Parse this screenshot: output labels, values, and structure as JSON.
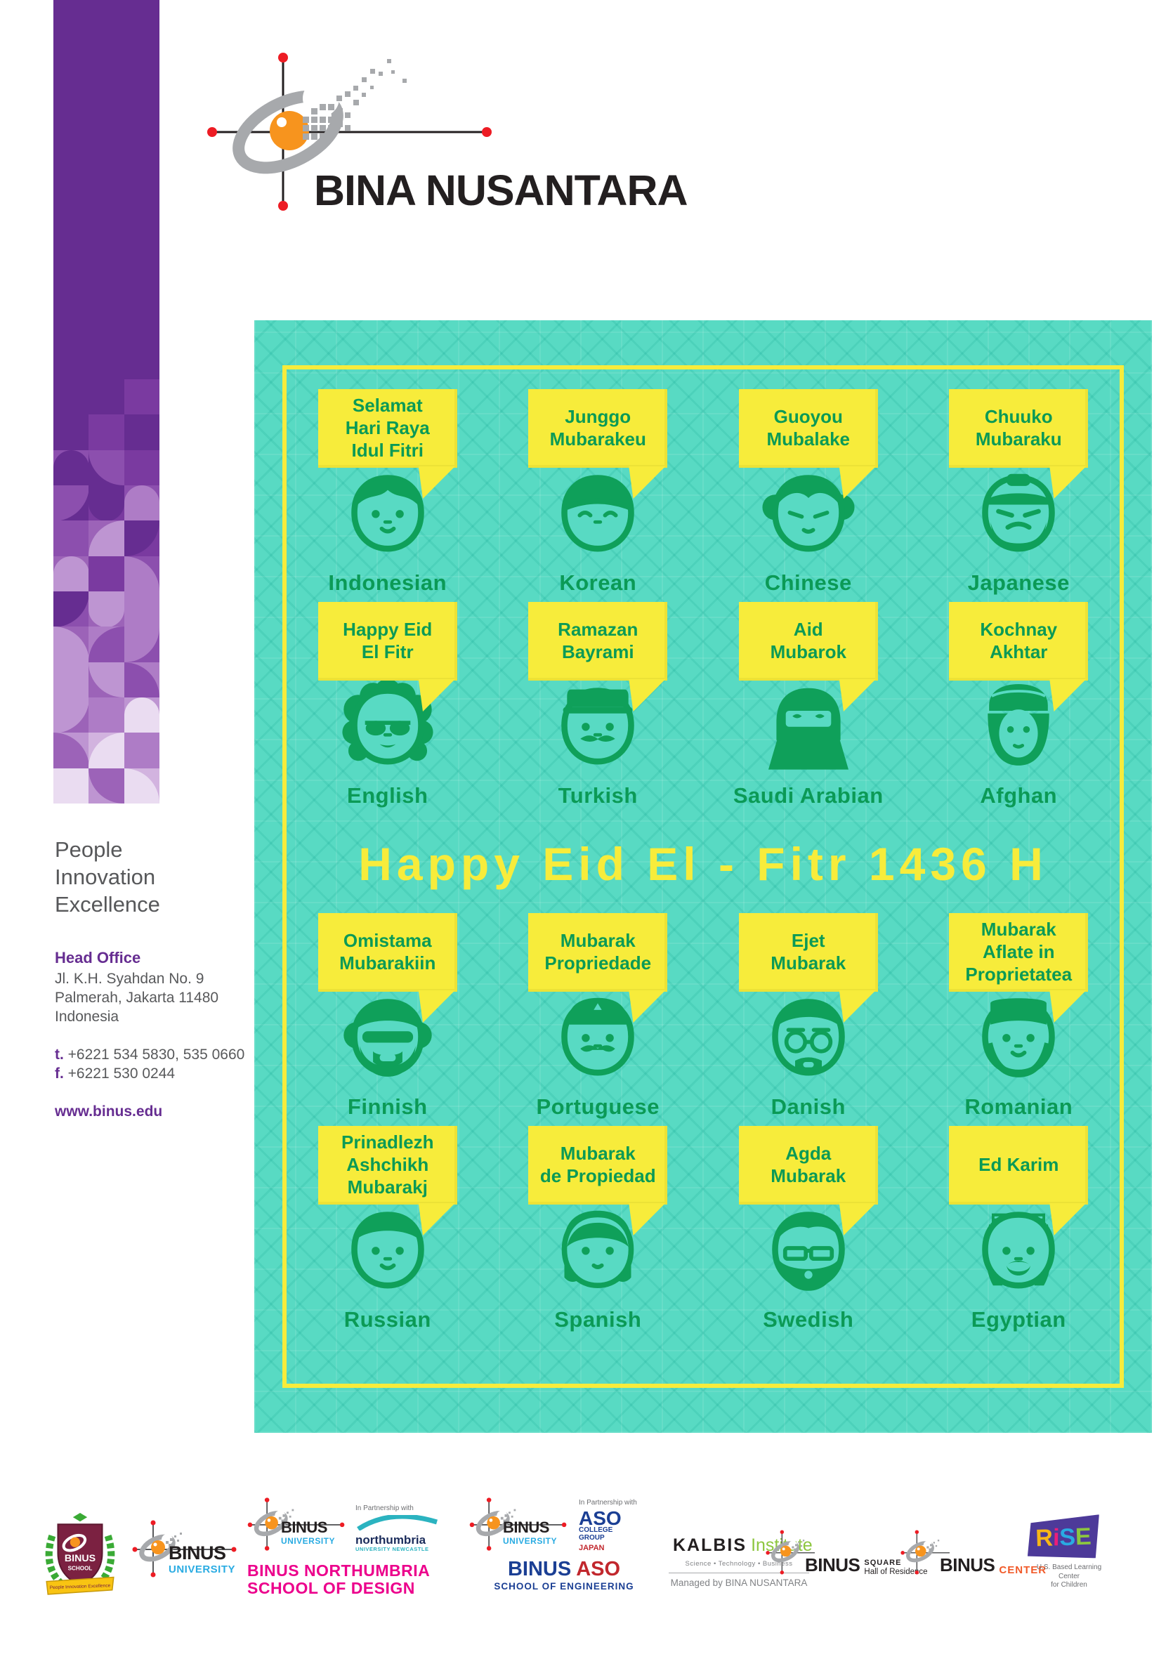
{
  "brand": {
    "name": "BINA NUSANTARA",
    "tagline_lines": [
      "People",
      "Innovation",
      "Excellence"
    ],
    "logo_icon": "bina-nusantara-globe-icon"
  },
  "contact": {
    "head_office_label": "Head Office",
    "address_lines": [
      "Jl. K.H. Syahdan No. 9",
      "Palmerah, Jakarta 11480",
      "Indonesia"
    ],
    "phone_label": "t.",
    "phone": "+6221 534 5830, 535 0660",
    "fax_label": "f.",
    "fax": "+6221 530 0244",
    "website": "www.binus.edu"
  },
  "poster": {
    "title": "Happy Eid El - Fitr 1436 H",
    "colors": {
      "background_teal": "#58DAC3",
      "accent_yellow": "#F7EC3B",
      "green": "#0B9A56"
    },
    "greetings": [
      {
        "greeting": "Selamat\nHari Raya\nIdul Fitri",
        "language": "Indonesian",
        "face": "indonesian-boy-face-icon"
      },
      {
        "greeting": "Junggo\nMubarakeu",
        "language": "Korean",
        "face": "korean-man-cap-face-icon"
      },
      {
        "greeting": "Guoyou\nMubalake",
        "language": "Chinese",
        "face": "chinese-woman-face-icon"
      },
      {
        "greeting": "Chuuko\nMubaraku",
        "language": "Japanese",
        "face": "japanese-man-face-icon"
      },
      {
        "greeting": "Happy Eid\nEl Fitr",
        "language": "English",
        "face": "english-woman-sunglasses-face-icon"
      },
      {
        "greeting": "Ramazan\nBayrami",
        "language": "Turkish",
        "face": "turkish-man-hat-face-icon"
      },
      {
        "greeting": "Aid\nMubarok",
        "language": "Saudi Arabian",
        "face": "saudi-woman-niqab-face-icon"
      },
      {
        "greeting": "Kochnay\nAkhtar",
        "language": "Afghan",
        "face": "afghan-man-turban-face-icon"
      },
      {
        "greeting": "Omistama\nMubarakiin",
        "language": "Finnish",
        "face": "finnish-man-shades-face-icon"
      },
      {
        "greeting": "Mubarak\nPropriedade",
        "language": "Portuguese",
        "face": "portuguese-man-hat-face-icon"
      },
      {
        "greeting": "Ejet\nMubarak",
        "language": "Danish",
        "face": "danish-man-glasses-face-icon"
      },
      {
        "greeting": "Mubarak\nAflate in\nProprietatea",
        "language": "Romanian",
        "face": "romanian-boy-tall-hat-face-icon"
      },
      {
        "greeting": "Prinadlezh\nAshchikh\nMubarakj",
        "language": "Russian",
        "face": "russian-boy-face-icon"
      },
      {
        "greeting": "Mubarak\nde Propiedad",
        "language": "Spanish",
        "face": "spanish-girl-face-icon"
      },
      {
        "greeting": "Agda\nMubarak",
        "language": "Swedish",
        "face": "swedish-man-glasses-face-icon"
      },
      {
        "greeting": "Ed Karim",
        "language": "Egyptian",
        "face": "egyptian-man-headdress-face-icon"
      }
    ]
  },
  "footer": {
    "logos": [
      {
        "id": "binus-school",
        "icon": "binus-school-crest-icon",
        "shield_line1": "BINUS",
        "shield_line2": "SCHOOL",
        "ribbon": "People Innovation Excellence"
      },
      {
        "id": "binus-university",
        "icon": "binus-globe-icon",
        "line1": "BINUS",
        "line2": "UNIVERSITY"
      },
      {
        "id": "binus-northumbria",
        "icon": "binus-globe-icon",
        "university_line1": "BINUS",
        "university_line2": "UNIVERSITY",
        "partnership": "In Partnership with",
        "partner": "northumbria",
        "partner_sub": "UNIVERSITY NEWCASTLE",
        "line1": "BINUS NORTHUMBRIA",
        "line2": "SCHOOL OF DESIGN"
      },
      {
        "id": "binus-aso",
        "icon": "binus-globe-icon",
        "university_line1": "BINUS",
        "university_line2": "UNIVERSITY",
        "partnership": "In Partnership with",
        "partner_line1": "ASO",
        "partner_line2": "COLLEGE",
        "partner_line3": "GROUP",
        "partner_line4": "JAPAN",
        "line1_a": "BINUS",
        "line1_b": "ASO",
        "line2": "SCHOOL OF ENGINEERING"
      },
      {
        "id": "kalbis-institute",
        "icon": "kalbis-check-icon",
        "name_a": "KALBIS",
        "name_b": "Institute",
        "tags": "Science • Technology • Business",
        "managed": "Managed by BINA NUSANTARA"
      },
      {
        "id": "binus-square",
        "icon": "binus-globe-icon",
        "line1": "BINUS",
        "line2": "SQUARE",
        "line3": "Hall of Residence"
      },
      {
        "id": "binus-center",
        "icon": "binus-globe-icon",
        "line1": "BINUS",
        "line2": "CENTER"
      },
      {
        "id": "rise",
        "icon": "rise-banner-icon",
        "letters": [
          "R",
          "i",
          "S",
          "E"
        ],
        "sub1": "U.S. Based Learning Center",
        "sub2": "for Children"
      }
    ]
  }
}
